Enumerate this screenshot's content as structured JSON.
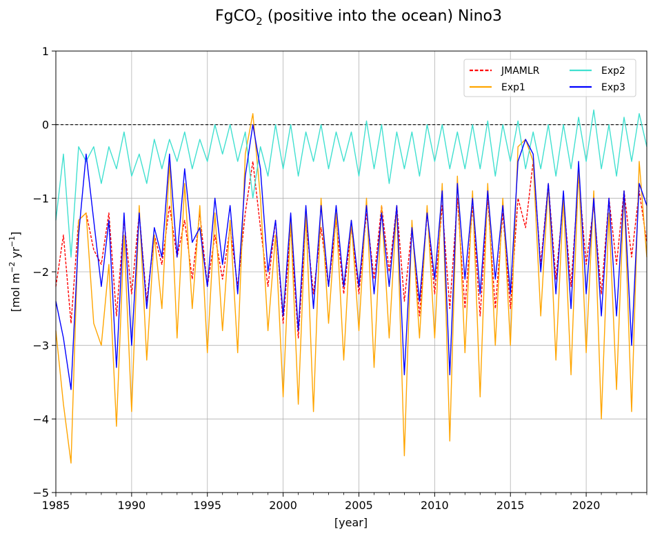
{
  "chart_data": {
    "type": "line",
    "title": "FgCO",
    "title_subscript": "2",
    "title_rest": " (positive into the ocean) Nino3",
    "xlabel": "[year]",
    "ylabel_parts": [
      "[mol m",
      "−2",
      " yr",
      "−1",
      "]"
    ],
    "xlim": [
      1985,
      2024
    ],
    "ylim": [
      -5,
      1
    ],
    "x_ticks": [
      1985,
      1990,
      1995,
      2000,
      2005,
      2010,
      2015,
      2020
    ],
    "x_tick_labels": [
      "1985",
      "1990",
      "1995",
      "2000",
      "2005",
      "2010",
      "2015",
      "2020"
    ],
    "y_ticks": [
      -5,
      -4,
      -3,
      -2,
      -1,
      0,
      1
    ],
    "y_tick_labels": [
      "−5",
      "−4",
      "−3",
      "−2",
      "−1",
      "0",
      "1"
    ],
    "grid": true,
    "reference_line": {
      "y": 0,
      "style": "dashed",
      "color": "#000000"
    },
    "legend": {
      "placement": "top-right",
      "columns": 2
    },
    "x": [
      1985.0,
      1985.5,
      1986.0,
      1986.5,
      1987.0,
      1987.5,
      1988.0,
      1988.5,
      1989.0,
      1989.5,
      1990.0,
      1990.5,
      1991.0,
      1991.5,
      1992.0,
      1992.5,
      1993.0,
      1993.5,
      1994.0,
      1994.5,
      1995.0,
      1995.5,
      1996.0,
      1996.5,
      1997.0,
      1997.5,
      1998.0,
      1998.5,
      1999.0,
      1999.5,
      2000.0,
      2000.5,
      2001.0,
      2001.5,
      2002.0,
      2002.5,
      2003.0,
      2003.5,
      2004.0,
      2004.5,
      2005.0,
      2005.5,
      2006.0,
      2006.5,
      2007.0,
      2007.5,
      2008.0,
      2008.5,
      2009.0,
      2009.5,
      2010.0,
      2010.5,
      2011.0,
      2011.5,
      2012.0,
      2012.5,
      2013.0,
      2013.5,
      2014.0,
      2014.5,
      2015.0,
      2015.5,
      2016.0,
      2016.5,
      2017.0,
      2017.5,
      2018.0,
      2018.5,
      2019.0,
      2019.5,
      2020.0,
      2020.5,
      2021.0,
      2021.5,
      2022.0,
      2022.5,
      2023.0,
      2023.5,
      2024.0
    ],
    "series": [
      {
        "name": "JMAMLR",
        "color": "#ff0000",
        "style": "dashed",
        "width": 1.4,
        "values": [
          -2.2,
          -1.5,
          -2.7,
          -1.3,
          -1.2,
          -1.7,
          -1.9,
          -1.2,
          -2.6,
          -1.3,
          -2.3,
          -1.2,
          -2.4,
          -1.5,
          -1.9,
          -1.1,
          -1.8,
          -1.3,
          -2.1,
          -1.2,
          -2.2,
          -1.5,
          -2.1,
          -1.4,
          -2.2,
          -1.2,
          -0.5,
          -1.4,
          -2.2,
          -1.3,
          -2.7,
          -1.4,
          -2.9,
          -1.3,
          -2.3,
          -1.4,
          -2.2,
          -1.3,
          -2.3,
          -1.4,
          -2.3,
          -1.2,
          -2.1,
          -1.1,
          -2.0,
          -1.1,
          -2.4,
          -1.4,
          -2.6,
          -1.2,
          -2.3,
          -1.1,
          -2.5,
          -1.0,
          -2.5,
          -1.1,
          -2.6,
          -1.0,
          -2.5,
          -1.2,
          -2.5,
          -1.0,
          -1.4,
          -0.5,
          -1.9,
          -0.8,
          -2.1,
          -1.0,
          -2.2,
          -0.7,
          -1.9,
          -1.1,
          -2.3,
          -1.0,
          -1.9,
          -0.9,
          -1.8,
          -0.9,
          -1.6
        ]
      },
      {
        "name": "Exp1",
        "color": "#ffa500",
        "style": "solid",
        "width": 1.4,
        "values": [
          -2.8,
          -3.8,
          -4.6,
          -1.3,
          -1.2,
          -2.7,
          -3.0,
          -1.9,
          -4.1,
          -1.5,
          -3.9,
          -1.1,
          -3.2,
          -1.5,
          -2.5,
          -0.5,
          -2.9,
          -0.8,
          -2.5,
          -1.1,
          -3.1,
          -1.2,
          -2.8,
          -1.3,
          -3.1,
          -0.4,
          0.15,
          -1.0,
          -2.8,
          -1.5,
          -3.7,
          -1.3,
          -3.8,
          -1.2,
          -3.9,
          -1.0,
          -2.7,
          -1.2,
          -3.2,
          -1.3,
          -2.8,
          -1.0,
          -3.3,
          -1.1,
          -2.9,
          -1.1,
          -4.5,
          -1.3,
          -2.9,
          -1.1,
          -2.9,
          -0.8,
          -4.3,
          -0.7,
          -3.1,
          -0.9,
          -3.7,
          -0.8,
          -3.0,
          -1.0,
          -3.0,
          -0.3,
          -0.2,
          -0.5,
          -2.6,
          -0.8,
          -3.2,
          -1.0,
          -3.4,
          -0.6,
          -3.1,
          -0.9,
          -4.0,
          -1.2,
          -3.6,
          -0.9,
          -3.9,
          -0.5,
          -1.8
        ]
      },
      {
        "name": "Exp2",
        "color": "#40e0d0",
        "style": "solid",
        "width": 1.4,
        "values": [
          -1.3,
          -0.4,
          -1.8,
          -0.3,
          -0.5,
          -0.3,
          -0.8,
          -0.3,
          -0.6,
          -0.1,
          -0.7,
          -0.4,
          -0.8,
          -0.2,
          -0.6,
          -0.2,
          -0.5,
          -0.1,
          -0.6,
          -0.2,
          -0.5,
          0.0,
          -0.4,
          0.0,
          -0.5,
          -0.1,
          -1.0,
          -0.3,
          -0.7,
          0.0,
          -0.6,
          0.0,
          -0.7,
          -0.1,
          -0.5,
          0.0,
          -0.6,
          -0.1,
          -0.5,
          -0.1,
          -0.7,
          0.05,
          -0.6,
          0.0,
          -0.8,
          -0.1,
          -0.6,
          -0.1,
          -0.7,
          0.0,
          -0.5,
          0.0,
          -0.6,
          -0.1,
          -0.6,
          0.0,
          -0.6,
          0.05,
          -0.7,
          0.0,
          -0.5,
          0.05,
          -0.6,
          -0.1,
          -0.6,
          0.0,
          -0.7,
          0.0,
          -0.6,
          0.1,
          -0.5,
          0.2,
          -0.6,
          0.0,
          -0.7,
          0.1,
          -0.5,
          0.15,
          -0.3
        ]
      },
      {
        "name": "Exp3",
        "color": "#0000ff",
        "style": "solid",
        "width": 1.4,
        "values": [
          -2.4,
          -2.9,
          -3.6,
          -1.5,
          -0.4,
          -1.3,
          -2.2,
          -1.3,
          -3.3,
          -1.2,
          -3.0,
          -1.2,
          -2.5,
          -1.4,
          -1.8,
          -0.4,
          -1.8,
          -0.6,
          -1.6,
          -1.4,
          -2.2,
          -1.0,
          -1.9,
          -1.1,
          -2.3,
          -0.7,
          0.0,
          -0.6,
          -2.0,
          -1.3,
          -2.6,
          -1.2,
          -2.8,
          -1.1,
          -2.5,
          -1.1,
          -2.2,
          -1.1,
          -2.2,
          -1.3,
          -2.2,
          -1.1,
          -2.3,
          -1.2,
          -2.2,
          -1.1,
          -3.4,
          -1.4,
          -2.4,
          -1.2,
          -2.1,
          -0.9,
          -3.4,
          -0.8,
          -2.1,
          -1.0,
          -2.3,
          -0.9,
          -2.1,
          -1.1,
          -2.3,
          -0.5,
          -0.2,
          -0.4,
          -2.0,
          -0.8,
          -2.3,
          -0.9,
          -2.5,
          -0.5,
          -2.3,
          -1.0,
          -2.6,
          -1.0,
          -2.6,
          -0.9,
          -3.0,
          -0.8,
          -1.1
        ]
      }
    ]
  }
}
